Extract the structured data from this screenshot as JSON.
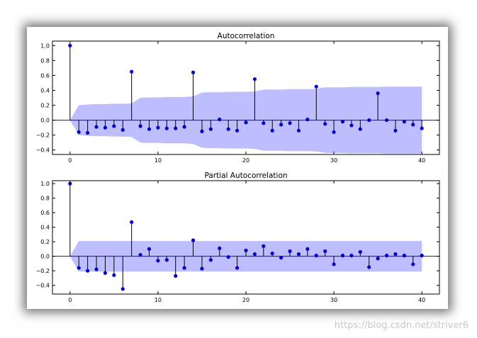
{
  "watermark": "https://blog.csdn.net/striver6",
  "colors": {
    "marker": "#0000cc",
    "band": "#b3b3ff",
    "stem": "#000000",
    "zero": "#0000ff"
  },
  "chart_data": [
    {
      "type": "scatter",
      "title": "Autocorrelation",
      "x": [
        0,
        1,
        2,
        3,
        4,
        5,
        6,
        7,
        8,
        9,
        10,
        11,
        12,
        13,
        14,
        15,
        16,
        17,
        18,
        19,
        20,
        21,
        22,
        23,
        24,
        25,
        26,
        27,
        28,
        29,
        30,
        31,
        32,
        33,
        34,
        35,
        36,
        37,
        38,
        39,
        40
      ],
      "values": [
        1.0,
        -0.16,
        -0.17,
        -0.09,
        -0.1,
        -0.08,
        -0.13,
        0.65,
        -0.08,
        -0.12,
        -0.1,
        -0.11,
        -0.11,
        -0.09,
        0.64,
        -0.15,
        -0.12,
        0.01,
        -0.12,
        -0.14,
        -0.03,
        0.55,
        -0.04,
        -0.14,
        -0.06,
        -0.04,
        -0.14,
        0.01,
        0.45,
        -0.05,
        -0.16,
        -0.02,
        -0.07,
        -0.12,
        0.0,
        0.36,
        0.0,
        -0.14,
        -0.02,
        -0.06,
        -0.11
      ],
      "confint_upper": [
        0.0,
        0.2,
        0.21,
        0.215,
        0.215,
        0.22,
        0.22,
        0.225,
        0.3,
        0.305,
        0.305,
        0.31,
        0.31,
        0.31,
        0.32,
        0.37,
        0.375,
        0.375,
        0.38,
        0.38,
        0.38,
        0.385,
        0.41,
        0.41,
        0.41,
        0.415,
        0.415,
        0.415,
        0.42,
        0.44,
        0.44,
        0.44,
        0.445,
        0.445,
        0.445,
        0.445,
        0.45,
        0.45,
        0.45,
        0.45,
        0.45
      ],
      "xticks": [
        0,
        10,
        20,
        30,
        40
      ],
      "yticks": [
        1.0,
        0.8,
        0.6,
        0.4,
        0.2,
        0.0,
        -0.2,
        -0.4
      ],
      "ytick_labels": [
        "1.0",
        "0.8",
        "0.6",
        "0.4",
        "0.2",
        "0.0",
        "−0.2",
        "−0.4"
      ],
      "xlim": [
        -2,
        42
      ],
      "ylim": [
        -0.46,
        1.06
      ]
    },
    {
      "type": "scatter",
      "title": "Partial Autocorrelation",
      "x": [
        0,
        1,
        2,
        3,
        4,
        5,
        6,
        7,
        8,
        9,
        10,
        11,
        12,
        13,
        14,
        15,
        16,
        17,
        18,
        19,
        20,
        21,
        22,
        23,
        24,
        25,
        26,
        27,
        28,
        29,
        30,
        31,
        32,
        33,
        34,
        35,
        36,
        37,
        38,
        39,
        40
      ],
      "values": [
        1.0,
        -0.16,
        -0.2,
        -0.18,
        -0.23,
        -0.26,
        -0.45,
        0.47,
        0.02,
        0.1,
        -0.06,
        -0.05,
        -0.27,
        -0.16,
        0.22,
        -0.17,
        -0.05,
        0.11,
        -0.01,
        -0.16,
        0.08,
        0.03,
        0.14,
        0.04,
        -0.02,
        0.07,
        0.03,
        0.1,
        0.01,
        0.07,
        -0.11,
        0.01,
        0.01,
        0.06,
        -0.15,
        -0.03,
        0.01,
        0.03,
        0.01,
        -0.11,
        0.01
      ],
      "confint_upper": [
        0.0,
        0.21,
        0.21,
        0.21,
        0.21,
        0.21,
        0.21,
        0.21,
        0.21,
        0.21,
        0.21,
        0.21,
        0.21,
        0.21,
        0.21,
        0.21,
        0.21,
        0.21,
        0.21,
        0.21,
        0.21,
        0.21,
        0.21,
        0.21,
        0.21,
        0.21,
        0.21,
        0.21,
        0.21,
        0.21,
        0.21,
        0.21,
        0.21,
        0.21,
        0.21,
        0.21,
        0.21,
        0.21,
        0.21,
        0.21,
        0.21
      ],
      "xticks": [
        0,
        10,
        20,
        30,
        40
      ],
      "yticks": [
        1.0,
        0.8,
        0.6,
        0.4,
        0.2,
        0.0,
        -0.2,
        -0.4
      ],
      "ytick_labels": [
        "1.0",
        "0.8",
        "0.6",
        "0.4",
        "0.2",
        "0.0",
        "−0.2",
        "−0.4"
      ],
      "xlim": [
        -2,
        42
      ],
      "ylim": [
        -0.52,
        1.04
      ]
    }
  ]
}
